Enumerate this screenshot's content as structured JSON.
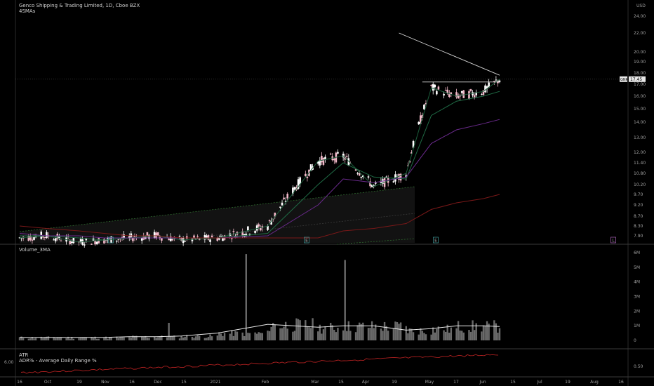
{
  "header": {
    "symbol_line": "Genco Shipping & Trading Limited, 1D, Cboe BZX",
    "indicator": "4SMAs"
  },
  "price_pane": {
    "currency": "USD",
    "ticker_tag": "GNK",
    "last_price_label": "17.45",
    "last_price": 17.45,
    "y_ticks": [
      "24.00",
      "22.00",
      "20.00",
      "19.00",
      "18.00",
      "17.00",
      "16.00",
      "15.00",
      "14.00",
      "13.00",
      "12.00",
      "11.40",
      "10.80",
      "10.20",
      "9.70",
      "9.20",
      "8.70",
      "8.30",
      "7.90"
    ],
    "event_badges": [
      "E",
      "E",
      "E",
      "L"
    ]
  },
  "volume_pane": {
    "title": "Volume_3MA",
    "y_ticks": [
      "6M",
      "5M",
      "4M",
      "3M",
      "2M",
      "1M",
      "0"
    ]
  },
  "atr_pane": {
    "title": "ATR",
    "subtitle": "ADR% - Average Daily Range %",
    "left_value": "6.00",
    "y_tick": "0.50"
  },
  "x_axis": {
    "ticks": [
      "16",
      "Oct",
      "19",
      "Nov",
      "16",
      "Dec",
      "15",
      "2021",
      "Feb",
      "Mar",
      "15",
      "Apr",
      "19",
      "May",
      "17",
      "Jun",
      "15",
      "Jul",
      "19",
      "Aug",
      "16"
    ]
  },
  "colors": {
    "up": "#ffffff",
    "down": "#f0b8c8",
    "sma_fast": "#1a5c3a",
    "sma_mid": "#1f6b45",
    "sma_slow": "#6a2a8c",
    "sma_long": "#7a1818",
    "volume": "#6a6a6a",
    "adr": "#b02020"
  },
  "chart_data": {
    "type": "line",
    "title": "Genco Shipping & Trading Limited, 1D, Cboe BZX",
    "x": [
      "2020-09-16",
      "2020-10-01",
      "2020-10-19",
      "2020-11-02",
      "2020-11-16",
      "2020-12-01",
      "2020-12-15",
      "2021-01-04",
      "2021-02-01",
      "2021-03-01",
      "2021-03-15",
      "2021-04-01",
      "2021-04-19",
      "2021-05-03",
      "2021-05-17",
      "2021-06-01",
      "2021-06-10"
    ],
    "series": [
      {
        "values": [
          7.8,
          7.9,
          7.6,
          7.7,
          7.8,
          7.9,
          7.7,
          7.8,
          8.3,
          11.5,
          11.8,
          10.1,
          10.8,
          16.7,
          16.0,
          16.4,
          17.45
        ]
      },
      {
        "values": [
          7.9,
          7.9,
          7.8,
          7.7,
          7.8,
          7.8,
          7.8,
          7.8,
          8.0,
          10.2,
          11.4,
          10.6,
          10.5,
          14.5,
          15.6,
          16.0,
          16.4
        ]
      },
      {
        "values": [
          8.0,
          7.9,
          7.9,
          7.8,
          7.8,
          7.8,
          7.8,
          7.8,
          7.9,
          9.2,
          10.5,
          10.3,
          10.6,
          12.6,
          13.5,
          13.9,
          14.2
        ]
      },
      {
        "values": [
          8.3,
          8.2,
          8.1,
          8.0,
          7.9,
          7.9,
          7.8,
          7.8,
          7.8,
          7.8,
          8.1,
          8.2,
          8.4,
          9.0,
          9.3,
          9.5,
          9.7
        ]
      }
    ],
    "ylim": [
      7.9,
      24.0
    ],
    "volume_ylim": [
      0,
      6
    ],
    "volume_3ma": [
      0.2,
      0.2,
      0.2,
      0.2,
      0.25,
      0.25,
      0.3,
      0.5,
      1.1,
      0.9,
      1.0,
      1.0,
      0.7,
      0.8,
      1.0,
      1.0,
      0.95
    ],
    "volume_peaks": [
      {
        "x": "2021-01-20",
        "value": 5.9
      },
      {
        "x": "2021-03-16",
        "value": 5.5
      },
      {
        "x": "2020-12-08",
        "value": 1.2
      }
    ],
    "trendlines": [
      {
        "kind": "resistance",
        "start": [
          "2021-04-28",
          17.2
        ],
        "end": [
          "2021-06-10",
          17.2
        ]
      },
      {
        "kind": "diagonal",
        "start": [
          "2021-04-15",
          22.0
        ],
        "end": [
          "2021-06-10",
          17.8
        ]
      }
    ],
    "grid": false,
    "legend": "none"
  }
}
